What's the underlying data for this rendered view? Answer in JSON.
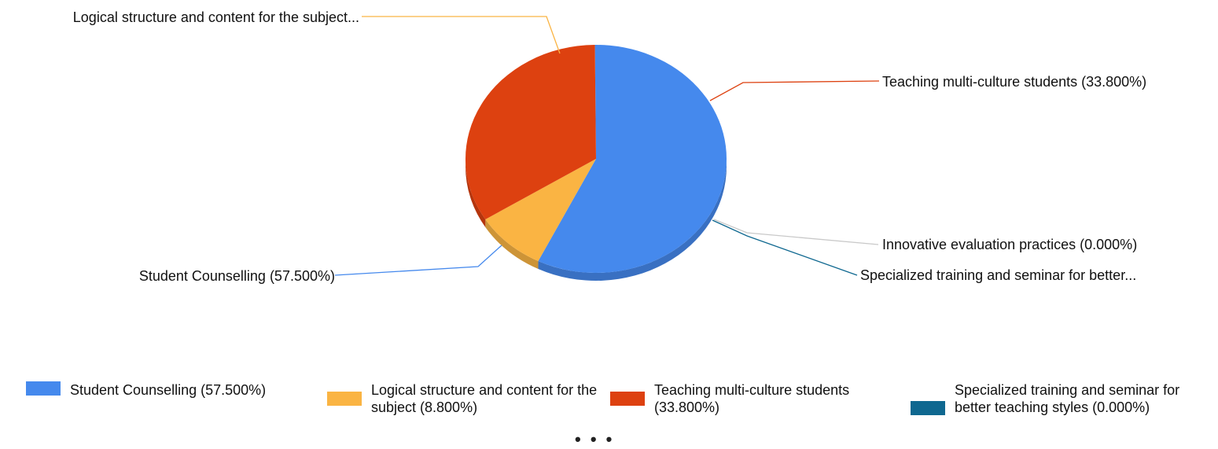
{
  "chart_data": {
    "type": "pie",
    "slices": [
      {
        "label": "Student Counselling (57.500%)",
        "value": 57.5,
        "color": "#4589ED"
      },
      {
        "label": "Logical structure and content for the subject...",
        "value": 8.8,
        "color": "#FAB443"
      },
      {
        "label": "Teaching multi-culture students (33.800%)",
        "value": 33.8,
        "color": "#DD4110"
      },
      {
        "label": "Innovative evaluation practices (0.000%)",
        "value": 0.0,
        "color": "#C9C9C9"
      },
      {
        "label": "Specialized training and seminar for better...",
        "value": 0.0,
        "color": "#0F6890"
      }
    ],
    "legend": {
      "placement": "bottom",
      "items": [
        {
          "label": "Student Counselling (57.500%)",
          "color": "#4589ED"
        },
        {
          "label": "Logical structure and content for the subject (8.800%)",
          "color": "#FAB443"
        },
        {
          "label": "Teaching multi-culture students (33.800%)",
          "color": "#DD4110"
        },
        {
          "label": "Specialized training and seminar for better teaching styles (0.000%)",
          "color": "#0F6890"
        }
      ],
      "more": "• • •"
    }
  }
}
